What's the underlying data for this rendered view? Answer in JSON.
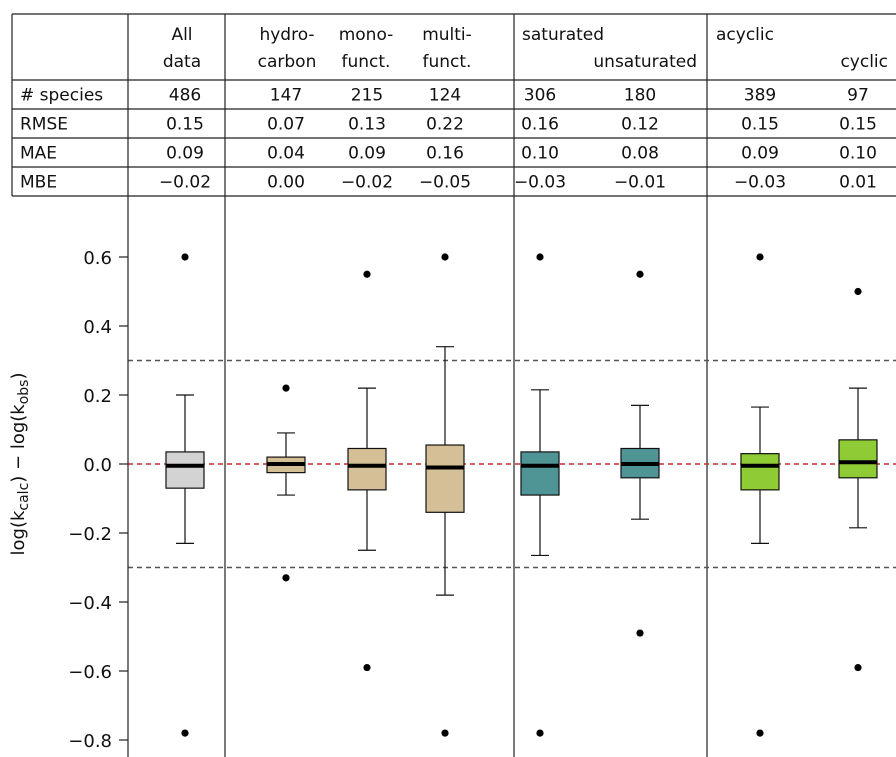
{
  "chart_data": {
    "type": "box",
    "table": {
      "groups": [
        {
          "label_lines": [
            "All",
            "data"
          ]
        },
        {
          "label_lines": [
            "hydro-",
            "carbon"
          ]
        },
        {
          "label_lines": [
            "mono-",
            "funct."
          ]
        },
        {
          "label_lines": [
            "multi-",
            "funct."
          ]
        },
        {
          "label_lines": [
            "saturated"
          ]
        },
        {
          "label_lines": [
            "unsaturated"
          ]
        },
        {
          "label_lines": [
            "acyclic"
          ]
        },
        {
          "label_lines": [
            "cyclic"
          ]
        }
      ],
      "rows": [
        {
          "label": "# species",
          "values": [
            "486",
            "147",
            "215",
            "124",
            "306",
            "180",
            "389",
            "97"
          ]
        },
        {
          "label": "RMSE",
          "values": [
            "0.15",
            "0.07",
            "0.13",
            "0.22",
            "0.16",
            "0.12",
            "0.15",
            "0.15"
          ]
        },
        {
          "label": "MAE",
          "values": [
            "0.09",
            "0.04",
            "0.09",
            "0.16",
            "0.10",
            "0.08",
            "0.09",
            "0.10"
          ]
        },
        {
          "label": "MBE",
          "values": [
            "−0.02",
            "0.00",
            "−0.02",
            "−0.05",
            "−0.03",
            "−0.01",
            "−0.03",
            "0.01"
          ]
        }
      ]
    },
    "ylabel": "log(kcalc) − log(kobs)",
    "ylim": [
      -0.85,
      0.72
    ],
    "yticks": [
      0.6,
      0.4,
      0.2,
      0.0,
      -0.2,
      -0.4,
      -0.6,
      -0.8
    ],
    "ytick_labels": [
      "0.6",
      "0.4",
      "0.2",
      "0.0",
      "−0.2",
      "−0.4",
      "−0.6",
      "−0.8"
    ],
    "reference_lines": [
      {
        "y": 0.0,
        "style": "dashed",
        "color": "#cc2a2a"
      },
      {
        "y": 0.3,
        "style": "dashed",
        "color": "#555555"
      },
      {
        "y": -0.3,
        "style": "dashed",
        "color": "#555555"
      }
    ],
    "boxes": [
      {
        "group": "All data",
        "whisker_low": -0.23,
        "q1": -0.07,
        "median": -0.005,
        "q3": 0.035,
        "whisker_high": 0.2,
        "outliers": [
          0.6,
          -0.78
        ],
        "color": "#d3d3d3"
      },
      {
        "group": "hydrocarbon",
        "whisker_low": -0.09,
        "q1": -0.025,
        "median": 0.0,
        "q3": 0.02,
        "whisker_high": 0.09,
        "outliers": [
          0.22,
          -0.33
        ],
        "color": "#d4bf97"
      },
      {
        "group": "monofunct.",
        "whisker_low": -0.25,
        "q1": -0.075,
        "median": -0.005,
        "q3": 0.045,
        "whisker_high": 0.22,
        "outliers": [
          0.55,
          -0.59
        ],
        "color": "#d4bf97"
      },
      {
        "group": "multifunct.",
        "whisker_low": -0.38,
        "q1": -0.14,
        "median": -0.01,
        "q3": 0.055,
        "whisker_high": 0.34,
        "outliers": [
          0.6,
          -0.78
        ],
        "color": "#d4bf97"
      },
      {
        "group": "saturated",
        "whisker_low": -0.265,
        "q1": -0.09,
        "median": -0.005,
        "q3": 0.035,
        "whisker_high": 0.215,
        "outliers": [
          0.6,
          -0.78
        ],
        "color": "#4f9596"
      },
      {
        "group": "unsaturated",
        "whisker_low": -0.16,
        "q1": -0.04,
        "median": 0.0,
        "q3": 0.045,
        "whisker_high": 0.17,
        "outliers": [
          0.55,
          -0.49
        ],
        "color": "#4f9596"
      },
      {
        "group": "acyclic",
        "whisker_low": -0.23,
        "q1": -0.075,
        "median": -0.005,
        "q3": 0.03,
        "whisker_high": 0.165,
        "outliers": [
          0.6,
          -0.78
        ],
        "color": "#8ecb35"
      },
      {
        "group": "cyclic",
        "whisker_low": -0.185,
        "q1": -0.04,
        "median": 0.005,
        "q3": 0.07,
        "whisker_high": 0.22,
        "outliers": [
          0.5,
          -0.59
        ],
        "color": "#8ecb35"
      }
    ]
  }
}
